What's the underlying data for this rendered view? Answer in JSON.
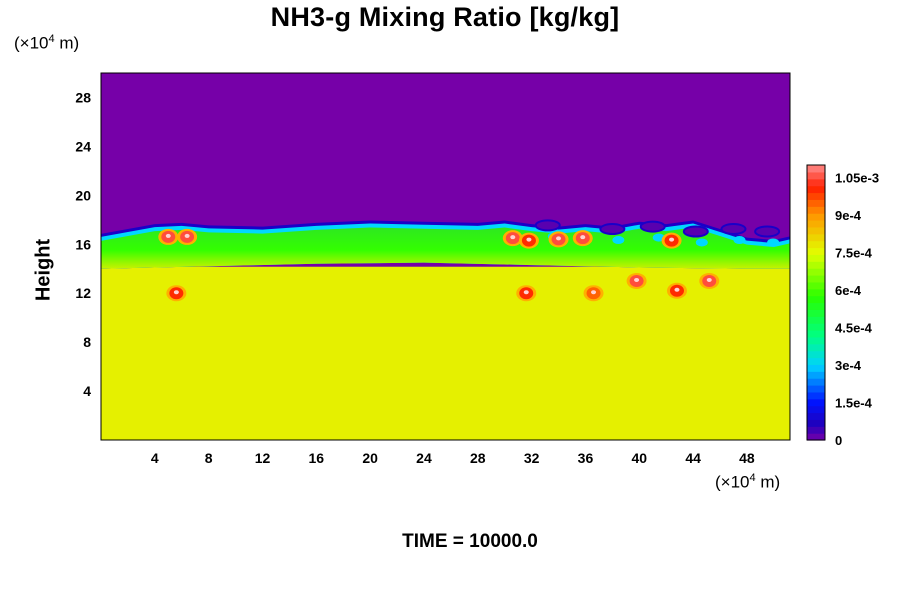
{
  "chart_data": {
    "type": "heatmap",
    "title": "NH3-g Mixing Ratio [kg/kg]",
    "ylabel": "Height",
    "y_unit": {
      "prefix": "(×10",
      "exp": "4",
      "suffix": " m)"
    },
    "x_unit": {
      "prefix": "(×10",
      "exp": "4",
      "suffix": " m)"
    },
    "time_label": "TIME = 10000.0",
    "xlim": [
      0,
      51.2
    ],
    "ylim": [
      0,
      30
    ],
    "x_ticks": [
      4,
      8,
      12,
      16,
      20,
      24,
      28,
      32,
      36,
      40,
      44,
      48
    ],
    "y_ticks": [
      4,
      8,
      12,
      16,
      20,
      24,
      28
    ],
    "colorbar": {
      "min": 0,
      "max": 0.0011,
      "tick_values": [
        0,
        0.00015,
        0.0003,
        0.00045,
        0.0006,
        0.00075,
        0.0009,
        0.00105
      ],
      "tick_labels": [
        "0",
        "1.5e-4",
        "3e-4",
        "4.5e-4",
        "6e-4",
        "7.5e-4",
        "9e-4",
        "1.05e-3"
      ]
    },
    "field": {
      "lower_layer_value": 0.00077,
      "upper_layer_value": 0.0,
      "transition_layer_value": 0.00058,
      "cloud_top_height_profile": {
        "x": [
          0,
          2,
          4,
          6,
          8,
          12,
          16,
          20,
          24,
          28,
          30,
          32,
          34,
          36,
          38,
          40,
          42,
          44,
          46,
          48,
          50,
          51.2
        ],
        "y": [
          16.6,
          17.0,
          17.4,
          17.5,
          17.3,
          17.2,
          17.5,
          17.7,
          17.6,
          17.5,
          17.7,
          17.4,
          17.2,
          17.4,
          17.2,
          17.6,
          17.4,
          17.7,
          17.0,
          16.3,
          16.1,
          16.4
        ]
      },
      "transition_bottom_height_profile": {
        "x": [
          0,
          8,
          16,
          24,
          32,
          40,
          48,
          51.2
        ],
        "y": [
          14.0,
          14.2,
          14.4,
          14.5,
          14.3,
          14.1,
          14.0,
          14.0
        ]
      },
      "blobs": [
        {
          "x": 5.0,
          "y": 16.6,
          "value": 0.00105
        },
        {
          "x": 6.4,
          "y": 16.6,
          "value": 0.00105
        },
        {
          "x": 5.6,
          "y": 12.0,
          "value": 0.001
        },
        {
          "x": 30.6,
          "y": 16.5,
          "value": 0.00105
        },
        {
          "x": 31.8,
          "y": 16.3,
          "value": 0.001
        },
        {
          "x": 34.0,
          "y": 16.4,
          "value": 0.00105
        },
        {
          "x": 35.8,
          "y": 16.5,
          "value": 0.00105
        },
        {
          "x": 31.6,
          "y": 12.0,
          "value": 0.001
        },
        {
          "x": 36.6,
          "y": 12.0,
          "value": 0.00095
        },
        {
          "x": 39.8,
          "y": 13.0,
          "value": 0.00105
        },
        {
          "x": 42.4,
          "y": 16.3,
          "value": 0.001
        },
        {
          "x": 42.8,
          "y": 12.2,
          "value": 0.001
        },
        {
          "x": 45.2,
          "y": 13.0,
          "value": 0.00105
        }
      ]
    }
  }
}
